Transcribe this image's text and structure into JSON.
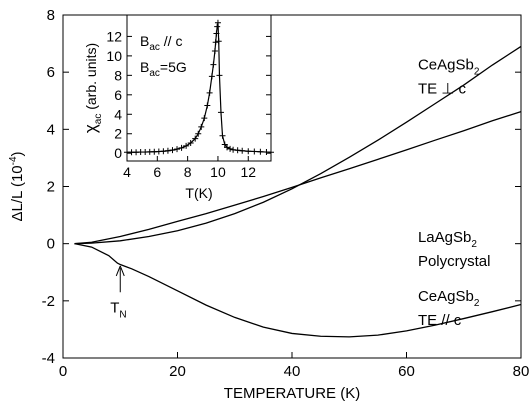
{
  "chart_data": [
    {
      "type": "line",
      "xlabel": "TEMPERATURE (K)",
      "ylabel": {
        "main": "ΔL/L (10",
        "exp": "-4",
        "close": ")"
      },
      "xlim": [
        0,
        80
      ],
      "ylim": [
        -4,
        8
      ],
      "x_ticks": [
        0,
        20,
        40,
        60,
        80
      ],
      "y_ticks": [
        -4,
        -2,
        0,
        2,
        4,
        6,
        8
      ],
      "x_tick_labels": [
        "0",
        "20",
        "40",
        "60",
        "80"
      ],
      "y_tick_labels": [
        "-4",
        "-2",
        "0",
        "2",
        "4",
        "6",
        "8"
      ],
      "grid": false,
      "series": [
        {
          "x": [
            2,
            5,
            10,
            15,
            20,
            25,
            30,
            35,
            40,
            45,
            50,
            55,
            60,
            65,
            70,
            75,
            80
          ],
          "y": [
            0,
            0.02,
            0.1,
            0.25,
            0.45,
            0.72,
            1.05,
            1.45,
            1.92,
            2.45,
            3.02,
            3.62,
            4.25,
            4.9,
            5.55,
            6.25,
            6.9
          ]
        },
        {
          "x": [
            2,
            5,
            10,
            15,
            20,
            25,
            30,
            35,
            40,
            45,
            50,
            55,
            60,
            65,
            70,
            75,
            80
          ],
          "y": [
            0,
            0.05,
            0.25,
            0.5,
            0.78,
            1.05,
            1.35,
            1.65,
            1.97,
            2.3,
            2.62,
            2.95,
            3.28,
            3.62,
            3.95,
            4.3,
            4.62
          ]
        },
        {
          "x": [
            2,
            5,
            8,
            9.5,
            10,
            12,
            15,
            20,
            25,
            30,
            35,
            40,
            45,
            50,
            55,
            60,
            65,
            70,
            75,
            80
          ],
          "y": [
            0,
            -0.12,
            -0.42,
            -0.68,
            -0.73,
            -0.88,
            -1.15,
            -1.65,
            -2.15,
            -2.58,
            -2.92,
            -3.14,
            -3.24,
            -3.26,
            -3.2,
            -3.05,
            -2.85,
            -2.62,
            -2.38,
            -2.13
          ]
        }
      ],
      "annotations": [
        {
          "lines": [
            {
              "main": "CeAgSb",
              "sub": "2"
            },
            {
              "main": "TE ⊥ c"
            }
          ],
          "x": 62,
          "y": 6.1
        },
        {
          "lines": [
            {
              "main": "LaAgSb",
              "sub": "2"
            },
            {
              "main": "Polycrystal"
            }
          ],
          "x": 62,
          "y": 0.05
        },
        {
          "lines": [
            {
              "main": "CeAgSb",
              "sub": "2"
            },
            {
              "main": "TE // c"
            }
          ],
          "x": 62,
          "y": -2.0
        }
      ],
      "tn_marker": {
        "main": "T",
        "sub": "N",
        "x": 10,
        "arrow_from_y": -1.7,
        "arrow_to_y": -0.78
      }
    },
    {
      "type": "scatter",
      "xlabel": "T(K)",
      "ylabel": {
        "main": "χ",
        "sub": "ac",
        "rest": " (arb. units)"
      },
      "xlim": [
        4,
        13.5
      ],
      "ylim": [
        -0.8,
        14.2
      ],
      "x_ticks": [
        4,
        6,
        8,
        10,
        12
      ],
      "y_ticks": [
        0,
        2,
        4,
        6,
        8,
        10,
        12
      ],
      "x_tick_labels": [
        "4",
        "6",
        "8",
        "10",
        "12"
      ],
      "y_tick_labels": [
        "0",
        "2",
        "4",
        "6",
        "8",
        "10",
        "12"
      ],
      "grid": false,
      "legend_text": [
        {
          "main": "B",
          "sub": "ac",
          "rest": " // c"
        },
        {
          "main": "B",
          "sub": "ac",
          "rest": "=5G"
        }
      ],
      "series": [
        {
          "x": [
            4.0,
            4.3,
            4.6,
            4.9,
            5.2,
            5.5,
            5.8,
            6.1,
            6.4,
            6.7,
            7.0,
            7.3,
            7.6,
            7.9,
            8.2,
            8.5,
            8.7,
            8.9,
            9.1,
            9.3,
            9.45,
            9.6,
            9.7,
            9.8,
            9.85,
            9.9,
            9.95,
            10.0,
            10.05,
            10.1,
            10.2,
            10.3,
            10.45,
            10.6,
            10.8,
            11.0,
            11.3,
            11.6,
            12.0,
            12.4,
            12.8,
            13.2,
            13.5
          ],
          "y": [
            0.1,
            0.1,
            0.1,
            0.12,
            0.12,
            0.14,
            0.15,
            0.17,
            0.2,
            0.25,
            0.32,
            0.42,
            0.55,
            0.75,
            1.05,
            1.5,
            2.0,
            2.7,
            3.6,
            4.9,
            6.2,
            7.9,
            9.1,
            10.5,
            11.4,
            12.3,
            13.0,
            13.4,
            11.5,
            8.0,
            4.2,
            1.8,
            0.9,
            0.6,
            0.45,
            0.35,
            0.3,
            0.25,
            0.2,
            0.18,
            0.15,
            0.12,
            0.1
          ]
        }
      ]
    }
  ]
}
